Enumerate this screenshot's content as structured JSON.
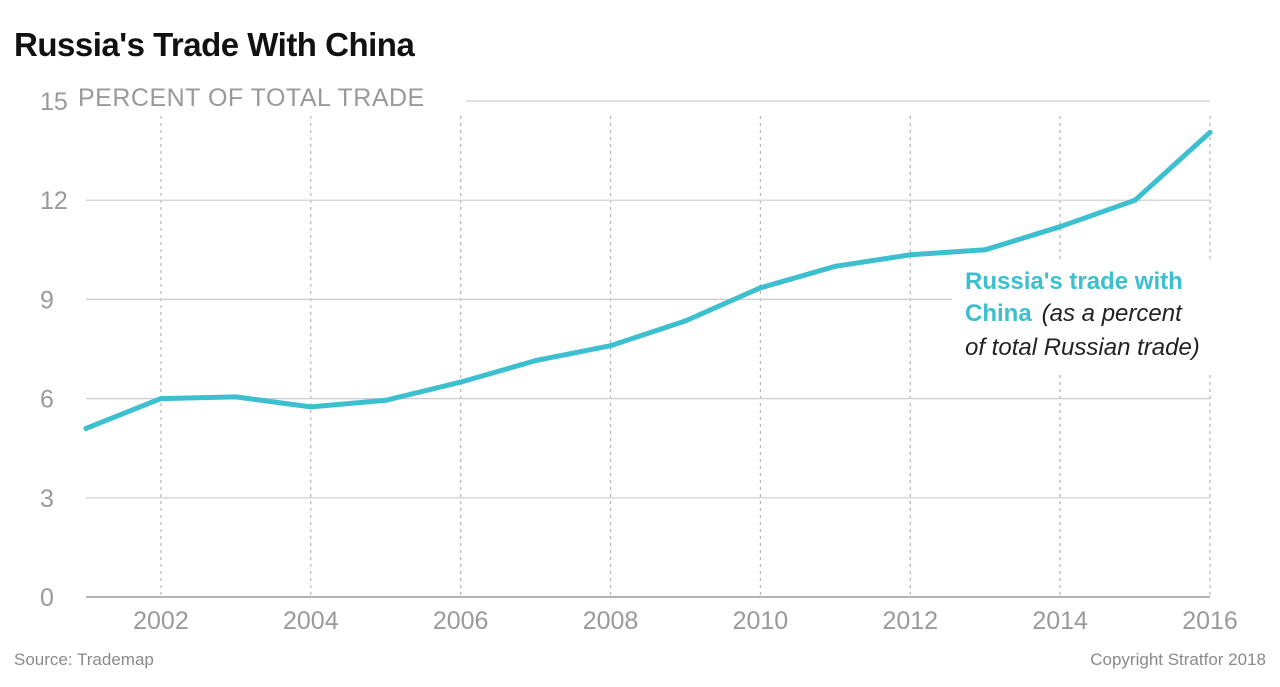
{
  "title": "Russia's Trade With China",
  "source": "Source: Trademap",
  "copyright": "Copyright Stratfor 2018",
  "colors": {
    "series": "#3cbfcf",
    "grid": "#cccccc",
    "tick_text": "#9a9a9a"
  },
  "chart_data": {
    "type": "line",
    "title": "Russia's Trade With China",
    "ylabel": "PERCENT OF TOTAL TRADE",
    "xlabel": "",
    "x_ticks": [
      2002,
      2004,
      2006,
      2008,
      2010,
      2012,
      2014,
      2016
    ],
    "y_ticks": [
      0,
      3,
      6,
      9,
      12,
      15
    ],
    "xlim": [
      2001,
      2016
    ],
    "ylim": [
      0,
      15
    ],
    "grid": "horizontal solid, vertical dotted at labeled years",
    "series": [
      {
        "name": "Russia's trade with China (as a percent of total Russian trade)",
        "x": [
          2001,
          2002,
          2003,
          2004,
          2005,
          2006,
          2007,
          2008,
          2009,
          2010,
          2011,
          2012,
          2013,
          2014,
          2015,
          2016
        ],
        "values": [
          5.1,
          6.0,
          6.05,
          5.75,
          5.95,
          6.5,
          7.15,
          7.6,
          8.35,
          9.35,
          10.0,
          10.35,
          10.5,
          11.2,
          12.0,
          14.05
        ]
      }
    ],
    "annotation": {
      "bold": [
        "Russia's trade with",
        "China"
      ],
      "italic": [
        "(as a percent",
        "of total Russian trade)"
      ]
    }
  }
}
